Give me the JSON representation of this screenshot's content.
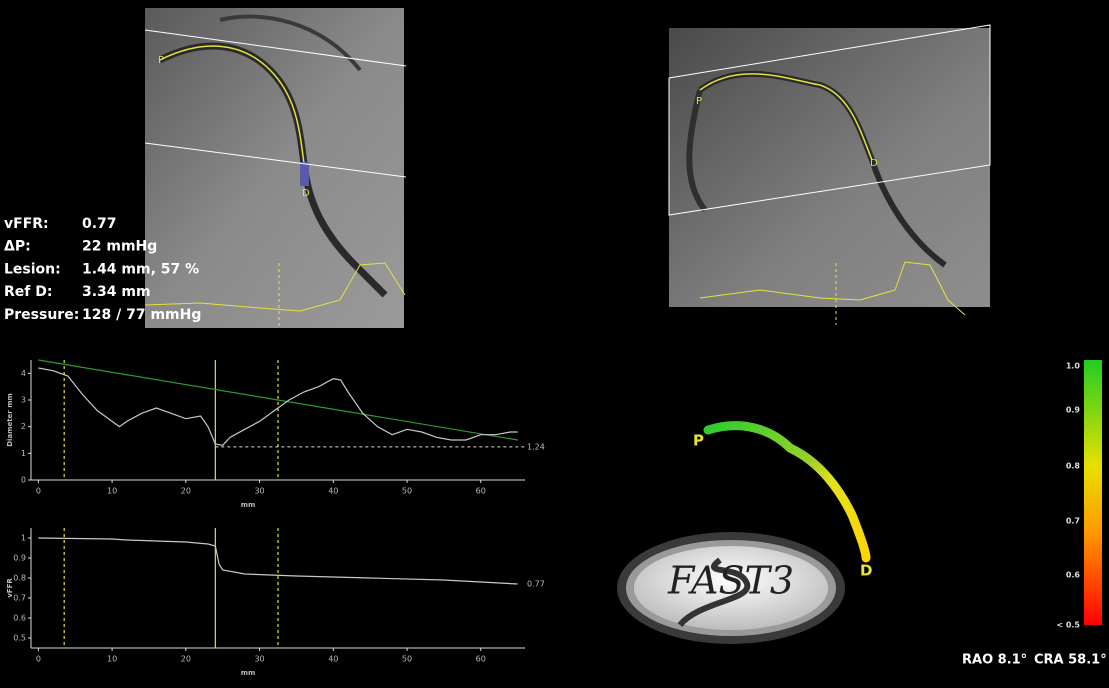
{
  "measurements": [
    [
      "vFFR:",
      "0.77"
    ],
    [
      "ΔP:",
      "22 mmHg"
    ],
    [
      "Lesion:",
      "1.44 mm, 57 %"
    ],
    [
      "Ref D:",
      "3.34 mm"
    ],
    [
      "Pressure:",
      "128 / 77 mmHg"
    ]
  ],
  "angio_labels": {
    "left": [
      "P",
      "D"
    ],
    "right": [
      "P",
      "D"
    ]
  },
  "vessel_labels": [
    "P",
    "D"
  ],
  "logo": "FAST3",
  "color_bar": [
    "1.0",
    "0.9",
    "0.8",
    "0.7",
    "0.6",
    "< 0.5"
  ],
  "view": [
    "RAO 8.1°",
    "CRA 58.1°"
  ],
  "chart_data": [
    {
      "type": "line",
      "y_label": "Diameter mm",
      "x_label": "mm",
      "x": [
        0,
        2,
        4,
        6,
        8,
        10,
        11,
        12,
        14,
        16,
        18,
        20,
        22,
        23,
        24,
        25,
        26,
        28,
        30,
        32,
        34,
        36,
        38,
        40,
        41,
        42,
        44,
        46,
        48,
        50,
        52,
        54,
        56,
        58,
        60,
        62,
        64,
        65
      ],
      "series": [
        {
          "color": "#c8c8c8",
          "values": [
            4.2,
            4.1,
            3.9,
            3.2,
            2.6,
            2.2,
            2.0,
            2.2,
            2.5,
            2.7,
            2.5,
            2.3,
            2.4,
            2.0,
            1.35,
            1.3,
            1.6,
            1.9,
            2.2,
            2.6,
            3.0,
            3.3,
            3.5,
            3.8,
            3.75,
            3.3,
            2.5,
            2.0,
            1.7,
            1.9,
            1.8,
            1.6,
            1.5,
            1.5,
            1.7,
            1.7,
            1.8,
            1.8
          ]
        }
      ],
      "reference": {
        "color": "#2e9a2e",
        "x": [
          0,
          65
        ],
        "values": [
          4.5,
          1.5
        ]
      },
      "min_line": 1.24,
      "markers": [
        3.5,
        24,
        32.5
      ],
      "marker_color": "#e6e23c",
      "xlim": [
        -1,
        66
      ],
      "ylim": [
        0,
        4.5
      ],
      "xticks": [
        0,
        10,
        20,
        30,
        40,
        50,
        60
      ],
      "yticks": [
        0,
        1,
        2,
        3,
        4
      ]
    },
    {
      "type": "line",
      "y_label": "vFFR",
      "x_label": "mm",
      "x": [
        0,
        10,
        12,
        20,
        23,
        24,
        24.5,
        25,
        28,
        35,
        45,
        55,
        60,
        65
      ],
      "series": [
        {
          "color": "#c8c8c8",
          "values": [
            1.0,
            0.995,
            0.99,
            0.98,
            0.97,
            0.96,
            0.87,
            0.84,
            0.82,
            0.81,
            0.8,
            0.79,
            0.78,
            0.77
          ]
        }
      ],
      "markers": [
        3.5,
        24,
        32.5
      ],
      "marker_color": "#e6e23c",
      "xlim": [
        -1,
        66
      ],
      "ylim": [
        0.45,
        1.05
      ],
      "xticks": [
        0,
        10,
        20,
        30,
        40,
        50,
        60
      ],
      "yticks": [
        0.5,
        0.6,
        0.7,
        0.8,
        0.9,
        1
      ]
    }
  ]
}
